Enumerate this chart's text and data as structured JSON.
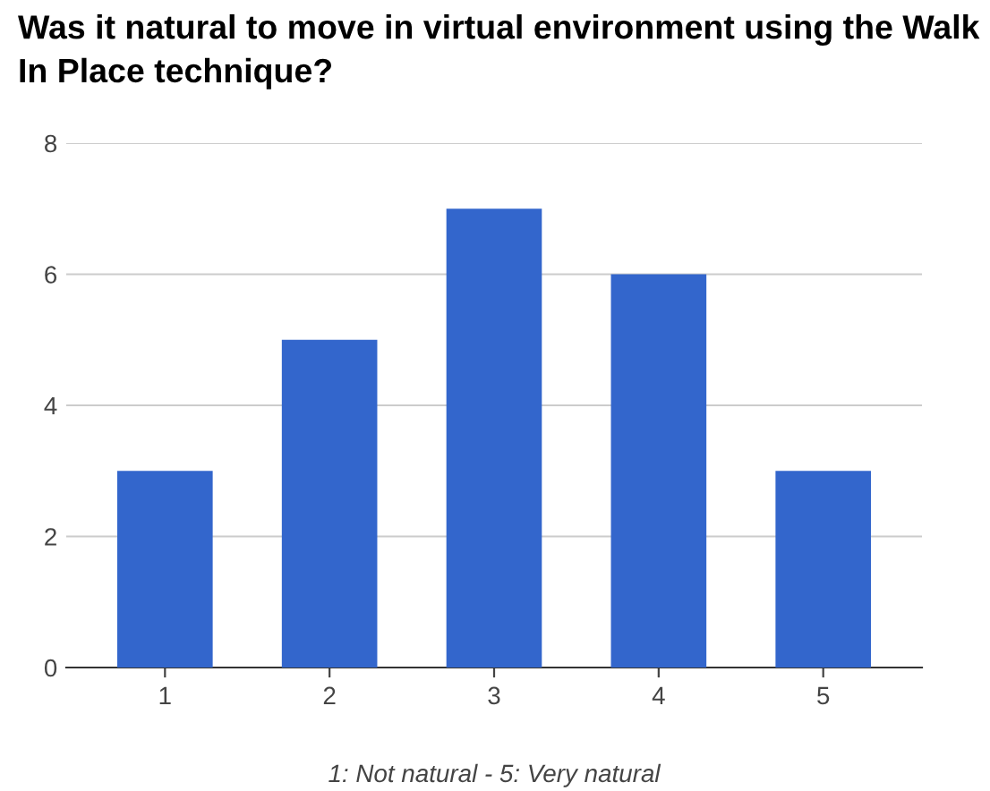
{
  "chart_data": {
    "type": "bar",
    "title": "Was it natural to move in virtual environment using the Walk In Place technique?",
    "xlabel": "1: Not natural - 5: Very natural",
    "categories": [
      "1",
      "2",
      "3",
      "4",
      "5"
    ],
    "values": [
      3,
      5,
      7,
      6,
      3
    ],
    "color": "#3366cc",
    "ylim": [
      0,
      8
    ],
    "yticks": [
      0,
      2,
      4,
      6,
      8
    ],
    "grid": "y"
  }
}
